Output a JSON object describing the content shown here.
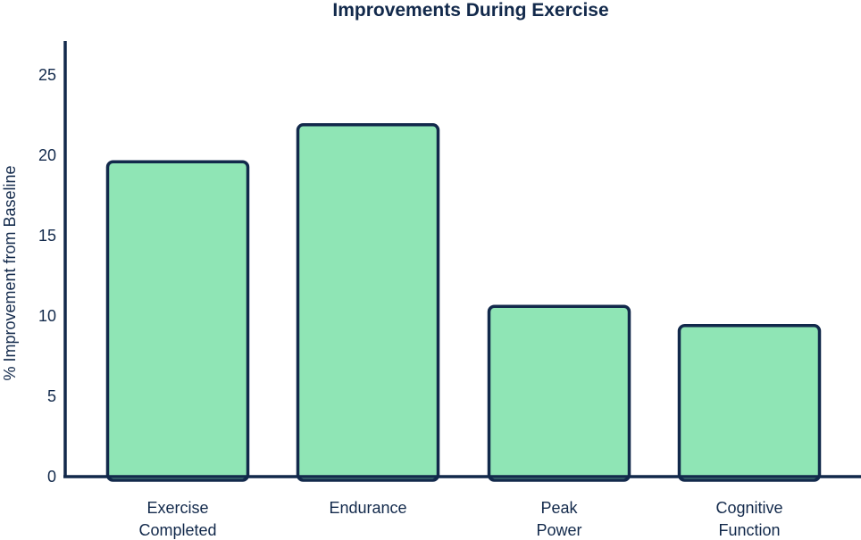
{
  "chart_data": {
    "type": "bar",
    "title": "Improvements During Exercise",
    "xlabel": "",
    "ylabel": "% Improvement from Baseline",
    "categories": [
      [
        "Exercise",
        "Completed"
      ],
      [
        "Endurance"
      ],
      [
        "Peak",
        "Power"
      ],
      [
        "Cognitive",
        "Function"
      ]
    ],
    "values": [
      19.6,
      21.9,
      10.6,
      9.4
    ],
    "ylim": [
      0,
      26
    ],
    "yticks": [
      0,
      5,
      10,
      15,
      20,
      25
    ],
    "grid": false,
    "colors": {
      "bar_fill": "#8fe5b5",
      "bar_stroke": "#12294b",
      "axis": "#12294b",
      "text": "#12294b"
    }
  }
}
